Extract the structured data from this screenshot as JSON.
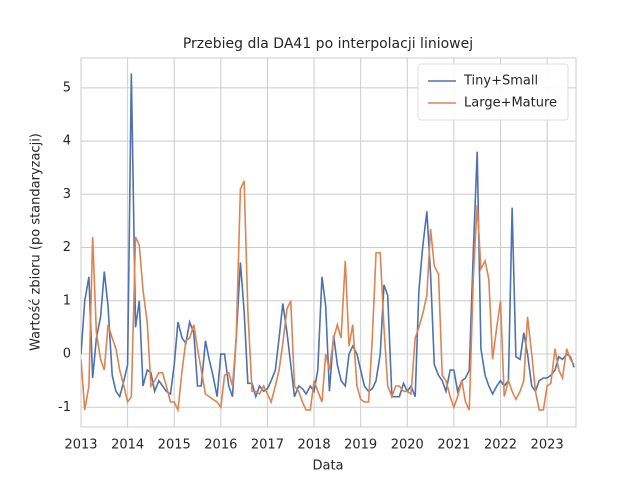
{
  "chart_data": {
    "type": "line",
    "title": "Przebieg dla DA41 po interpolacji liniowej",
    "x_label": "Data",
    "y_label": "Wartość zbioru (po standaryzacji)",
    "x": [
      2013,
      2013.08,
      2013.17,
      2013.25,
      2013.33,
      2013.42,
      2013.5,
      2013.58,
      2013.67,
      2013.75,
      2013.83,
      2013.92,
      2014,
      2014.08,
      2014.17,
      2014.25,
      2014.33,
      2014.42,
      2014.5,
      2014.58,
      2014.67,
      2014.75,
      2014.83,
      2014.92,
      2015,
      2015.08,
      2015.17,
      2015.25,
      2015.33,
      2015.42,
      2015.5,
      2015.58,
      2015.67,
      2015.75,
      2015.83,
      2015.92,
      2016,
      2016.08,
      2016.17,
      2016.25,
      2016.33,
      2016.42,
      2016.5,
      2016.58,
      2016.67,
      2016.75,
      2016.83,
      2016.92,
      2017,
      2017.08,
      2017.17,
      2017.25,
      2017.33,
      2017.42,
      2017.5,
      2017.58,
      2017.67,
      2017.75,
      2017.83,
      2017.92,
      2018,
      2018.08,
      2018.17,
      2018.25,
      2018.33,
      2018.42,
      2018.5,
      2018.58,
      2018.67,
      2018.75,
      2018.83,
      2018.92,
      2019,
      2019.08,
      2019.17,
      2019.25,
      2019.33,
      2019.42,
      2019.5,
      2019.58,
      2019.67,
      2019.75,
      2019.83,
      2019.92,
      2020,
      2020.08,
      2020.17,
      2020.25,
      2020.33,
      2020.42,
      2020.5,
      2020.58,
      2020.67,
      2020.75,
      2020.83,
      2020.92,
      2021,
      2021.08,
      2021.17,
      2021.25,
      2021.33,
      2021.42,
      2021.5,
      2021.58,
      2021.67,
      2021.75,
      2021.83,
      2021.92,
      2022,
      2022.08,
      2022.17,
      2022.25,
      2022.33,
      2022.42,
      2022.5,
      2022.58,
      2022.67,
      2022.75,
      2022.83,
      2022.92,
      2023,
      2023.08,
      2023.17,
      2023.25,
      2023.33,
      2023.42,
      2023.5,
      2023.58
    ],
    "series": [
      {
        "name": "Tiny+Small",
        "color": "#4c72b0",
        "values": [
          0,
          1.0,
          1.45,
          -0.45,
          0.3,
          0.7,
          1.55,
          0.9,
          -0.4,
          -0.7,
          -0.8,
          -0.5,
          -0.2,
          5.27,
          0.5,
          1.0,
          -0.6,
          -0.3,
          -0.35,
          -0.7,
          -0.5,
          -0.6,
          -0.7,
          -0.75,
          -0.2,
          0.6,
          0.3,
          0.2,
          0.6,
          0.4,
          -0.6,
          -0.6,
          0.25,
          -0.1,
          -0.4,
          -0.8,
          0,
          0,
          -0.6,
          -0.8,
          0.3,
          1.72,
          0.8,
          -0.55,
          -0.55,
          -0.8,
          -0.6,
          -0.7,
          -0.65,
          -0.5,
          -0.3,
          0.3,
          0.95,
          0.4,
          -0.2,
          -0.8,
          -0.6,
          -0.65,
          -0.75,
          -0.6,
          -0.7,
          -0.3,
          1.45,
          0.9,
          -0.7,
          0.35,
          -0.2,
          -0.5,
          -0.6,
          0.0,
          0.15,
          0.0,
          -0.3,
          -0.6,
          -0.7,
          -0.65,
          -0.5,
          0.0,
          1.3,
          1.1,
          -0.8,
          -0.8,
          -0.8,
          -0.55,
          -0.7,
          -0.6,
          -0.8,
          1.2,
          2.0,
          2.68,
          1.5,
          -0.2,
          -0.4,
          -0.5,
          -0.7,
          -0.3,
          -0.3,
          -0.7,
          -0.5,
          -0.45,
          -0.3,
          2.0,
          3.8,
          0.1,
          -0.4,
          -0.6,
          -0.75,
          -0.6,
          -0.5,
          -0.6,
          -0.5,
          2.75,
          -0.05,
          -0.1,
          0.4,
          0.0,
          -0.6,
          -0.7,
          -0.5,
          -0.45,
          -0.45,
          -0.4,
          -0.3,
          -0.05,
          -0.1,
          0.0,
          -0.05,
          -0.25
        ]
      },
      {
        "name": "Large+Mature",
        "color": "#dd8452",
        "values": [
          -0.1,
          -1.05,
          -0.6,
          2.2,
          0.4,
          -0.1,
          -0.3,
          0.55,
          0.3,
          0.1,
          -0.3,
          -0.6,
          -0.9,
          -0.8,
          2.2,
          2.05,
          1.2,
          0.6,
          -0.6,
          -0.5,
          -0.35,
          -0.35,
          -0.6,
          -0.9,
          -0.9,
          -1.05,
          -0.3,
          0.25,
          0.3,
          0.55,
          0.1,
          -0.3,
          -0.75,
          -0.8,
          -0.85,
          -0.9,
          -1.0,
          -0.4,
          -0.35,
          -0.6,
          0.3,
          3.1,
          3.25,
          0.8,
          -0.7,
          -0.7,
          -0.75,
          -0.6,
          -0.75,
          -0.9,
          -0.6,
          -0.3,
          0.2,
          0.85,
          1.0,
          -0.6,
          -0.7,
          -0.9,
          -1.05,
          -1.05,
          -0.5,
          -0.7,
          -0.9,
          0.0,
          -0.3,
          0.3,
          0.55,
          0.3,
          1.75,
          0.15,
          0.55,
          -0.6,
          -0.85,
          -0.9,
          -0.9,
          0.3,
          1.9,
          1.9,
          0.5,
          -0.6,
          -0.8,
          -0.6,
          -0.6,
          -0.7,
          -0.7,
          -0.75,
          0.3,
          0.5,
          0.75,
          1.1,
          2.35,
          1.65,
          1.5,
          -0.4,
          -0.5,
          -0.8,
          -1.0,
          -0.8,
          -0.5,
          -0.9,
          -1.05,
          1.5,
          2.8,
          1.6,
          1.75,
          1.4,
          -0.1,
          0.5,
          1.0,
          -0.8,
          -0.5,
          -0.7,
          -0.85,
          -0.7,
          -0.5,
          0.7,
          0.0,
          -0.7,
          -1.05,
          -1.05,
          -0.6,
          -0.55,
          0.1,
          -0.3,
          -0.45,
          0.1,
          -0.1,
          -0.2
        ]
      }
    ],
    "xlim": [
      2013,
      2023.62
    ],
    "ylim": [
      -1.37,
      5.56
    ],
    "xticks": [
      2013,
      2014,
      2015,
      2016,
      2017,
      2018,
      2019,
      2020,
      2021,
      2022,
      2023
    ],
    "yticks": [
      -1,
      0,
      1,
      2,
      3,
      4,
      5
    ],
    "grid": true,
    "legend": "upper right"
  }
}
